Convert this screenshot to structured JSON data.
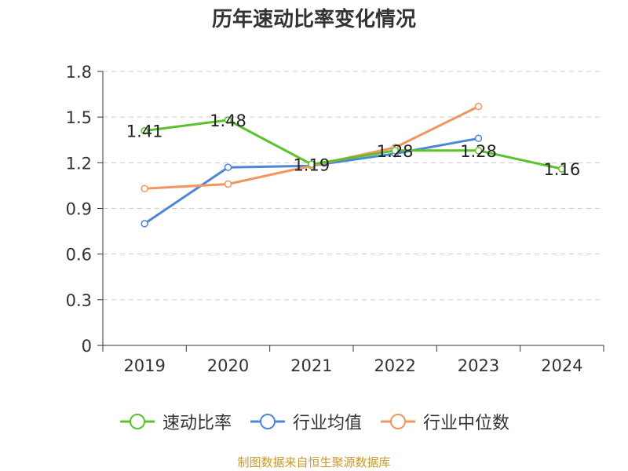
{
  "title": "历年速动比率变化情况",
  "source_note": "制图数据来自恒生聚源数据库",
  "colors": {
    "axis": "#333333",
    "grid": "#cccccc"
  },
  "chart_data": {
    "type": "line",
    "title": "历年速动比率变化情况",
    "categories": [
      "2019",
      "2020",
      "2021",
      "2022",
      "2023",
      "2024"
    ],
    "ylim": [
      0,
      1.8
    ],
    "yticks": [
      "0",
      "0.3",
      "0.6",
      "0.9",
      "1.2",
      "1.5",
      "1.8"
    ],
    "grid": true,
    "legend_position": "bottom",
    "series": [
      {
        "name": "速动比率",
        "color": "#5cc22b",
        "values": [
          1.41,
          1.48,
          1.19,
          1.28,
          1.28,
          1.16
        ],
        "labels": [
          "1.41",
          "1.48",
          "1.19",
          "1.28",
          "1.28",
          "1.16"
        ]
      },
      {
        "name": "行业均值",
        "color": "#4f86d6",
        "values": [
          0.8,
          1.17,
          1.18,
          1.26,
          1.36,
          null
        ]
      },
      {
        "name": "行业中位数",
        "color": "#f39461",
        "values": [
          1.03,
          1.06,
          1.18,
          1.3,
          1.57,
          null
        ]
      }
    ]
  }
}
